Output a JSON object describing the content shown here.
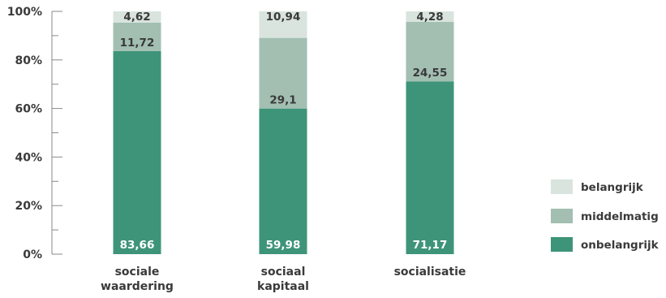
{
  "chart_data": {
    "type": "bar",
    "stacked": true,
    "normalized": true,
    "categories": [
      [
        "sociale",
        "waardering"
      ],
      [
        "sociaal",
        "kapitaal"
      ],
      [
        "socialisatie"
      ]
    ],
    "series": [
      {
        "name": "onbelangrijk",
        "values": [
          83.66,
          59.98,
          71.17
        ],
        "labels": [
          "83,66",
          "59,98",
          "71,17"
        ],
        "color": "#3e9479"
      },
      {
        "name": "middelmatig",
        "values": [
          11.72,
          29.1,
          24.55
        ],
        "labels": [
          "11,72",
          "29,1",
          "24,55"
        ],
        "color": "#a2bfb2"
      },
      {
        "name": "belangrijk",
        "values": [
          4.62,
          10.94,
          4.28
        ],
        "labels": [
          "4,62",
          "10,94",
          "4,28"
        ],
        "color": "#d8e4dd"
      }
    ],
    "y_ticks": [
      "0%",
      "20%",
      "40%",
      "60%",
      "80%",
      "100%"
    ],
    "ylim": [
      0,
      100
    ],
    "grid": false,
    "legend_position": "right",
    "legend_order": [
      "belangrijk",
      "middelmatig",
      "onbelangrijk"
    ]
  }
}
